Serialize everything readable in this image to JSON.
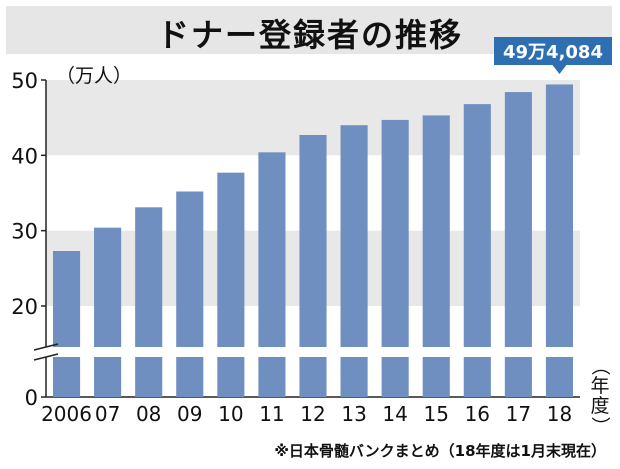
{
  "chart_data": {
    "type": "bar",
    "title": "ドナー登録者の推移",
    "unit_label": "（万人）",
    "xlabel": "（年度）",
    "categories": [
      "2006",
      "07",
      "08",
      "09",
      "10",
      "11",
      "12",
      "13",
      "14",
      "15",
      "16",
      "17",
      "18"
    ],
    "values": [
      27.3,
      30.4,
      33.1,
      35.2,
      37.7,
      40.4,
      42.7,
      44.0,
      44.7,
      45.3,
      46.8,
      48.4,
      49.4084
    ],
    "y_ticks": [
      "0",
      "20",
      "30",
      "40",
      "50"
    ],
    "ylim": [
      15,
      50
    ],
    "highlight_label": "49万4,084",
    "axis_break": true,
    "source": "※日本骨髄バンクまとめ（18年度は1月末現在）"
  },
  "colors": {
    "bar": "#6f8fc0",
    "band": "#e8e8e8",
    "highlight": "#2d6fb0"
  }
}
